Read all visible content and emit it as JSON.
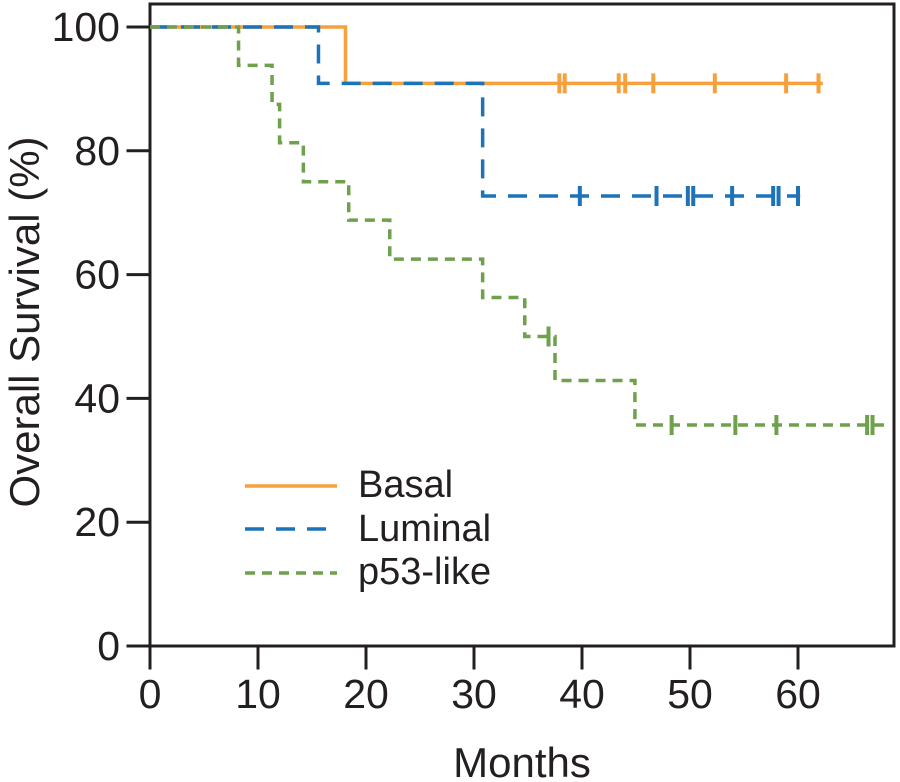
{
  "chart_data": {
    "type": "line",
    "subtype": "kaplan_meier_step",
    "title": "",
    "xlabel": "Months",
    "ylabel": "Overall Survival (%)",
    "x_ticks": [
      0,
      10,
      20,
      30,
      40,
      50,
      60
    ],
    "y_ticks": [
      0,
      20,
      40,
      60,
      80,
      100
    ],
    "xlim": [
      0,
      69
    ],
    "ylim": [
      0,
      104
    ],
    "grid": false,
    "legend_position": "inside-lower-left",
    "axis_color": "#231F20",
    "background_color": "#ffffff",
    "series": [
      {
        "name": "Basal",
        "color": "#F6A13C",
        "line_style": "solid",
        "dash": [],
        "line_width": 3.5,
        "steps": [
          {
            "t": 0,
            "s": 100
          },
          {
            "t": 18.1,
            "s": 90.9
          }
        ],
        "end_t": 62.3,
        "censors": [
          {
            "t": 37.9,
            "s": 90.9
          },
          {
            "t": 38.4,
            "s": 90.9
          },
          {
            "t": 43.4,
            "s": 90.9
          },
          {
            "t": 44.0,
            "s": 90.9
          },
          {
            "t": 46.6,
            "s": 90.9
          },
          {
            "t": 52.3,
            "s": 90.9
          },
          {
            "t": 58.9,
            "s": 90.9
          },
          {
            "t": 61.9,
            "s": 90.9
          }
        ]
      },
      {
        "name": "Luminal",
        "color": "#1C73B9",
        "line_style": "long-dash",
        "dash": [
          19,
          12
        ],
        "line_width": 3.5,
        "steps": [
          {
            "t": 0,
            "s": 100
          },
          {
            "t": 15.6,
            "s": 90.9
          },
          {
            "t": 30.8,
            "s": 72.7
          }
        ],
        "end_t": 60.2,
        "censors": [
          {
            "t": 39.8,
            "s": 72.7
          },
          {
            "t": 46.9,
            "s": 72.7
          },
          {
            "t": 49.8,
            "s": 72.7
          },
          {
            "t": 50.3,
            "s": 72.7
          },
          {
            "t": 53.9,
            "s": 72.7
          },
          {
            "t": 57.7,
            "s": 72.7
          },
          {
            "t": 58.2,
            "s": 72.7
          },
          {
            "t": 60.0,
            "s": 72.7
          }
        ]
      },
      {
        "name": "p53-like",
        "color": "#6FA04C",
        "line_style": "short-dash",
        "dash": [
          10,
          7
        ],
        "line_width": 3.5,
        "steps": [
          {
            "t": 0,
            "s": 100
          },
          {
            "t": 8.2,
            "s": 93.8
          },
          {
            "t": 11.3,
            "s": 87.5
          },
          {
            "t": 12.0,
            "s": 81.3
          },
          {
            "t": 14.2,
            "s": 75.0
          },
          {
            "t": 18.4,
            "s": 68.8
          },
          {
            "t": 22.2,
            "s": 62.5
          },
          {
            "t": 30.8,
            "s": 56.3
          },
          {
            "t": 34.7,
            "s": 50.0
          },
          {
            "t": 37.5,
            "s": 42.9
          },
          {
            "t": 44.9,
            "s": 35.7
          }
        ],
        "end_t": 68.1,
        "censors": [
          {
            "t": 36.9,
            "s": 50.0
          },
          {
            "t": 48.3,
            "s": 35.7
          },
          {
            "t": 54.2,
            "s": 35.7
          },
          {
            "t": 58.0,
            "s": 35.7
          },
          {
            "t": 66.4,
            "s": 35.7
          },
          {
            "t": 66.9,
            "s": 35.7
          }
        ]
      }
    ]
  }
}
